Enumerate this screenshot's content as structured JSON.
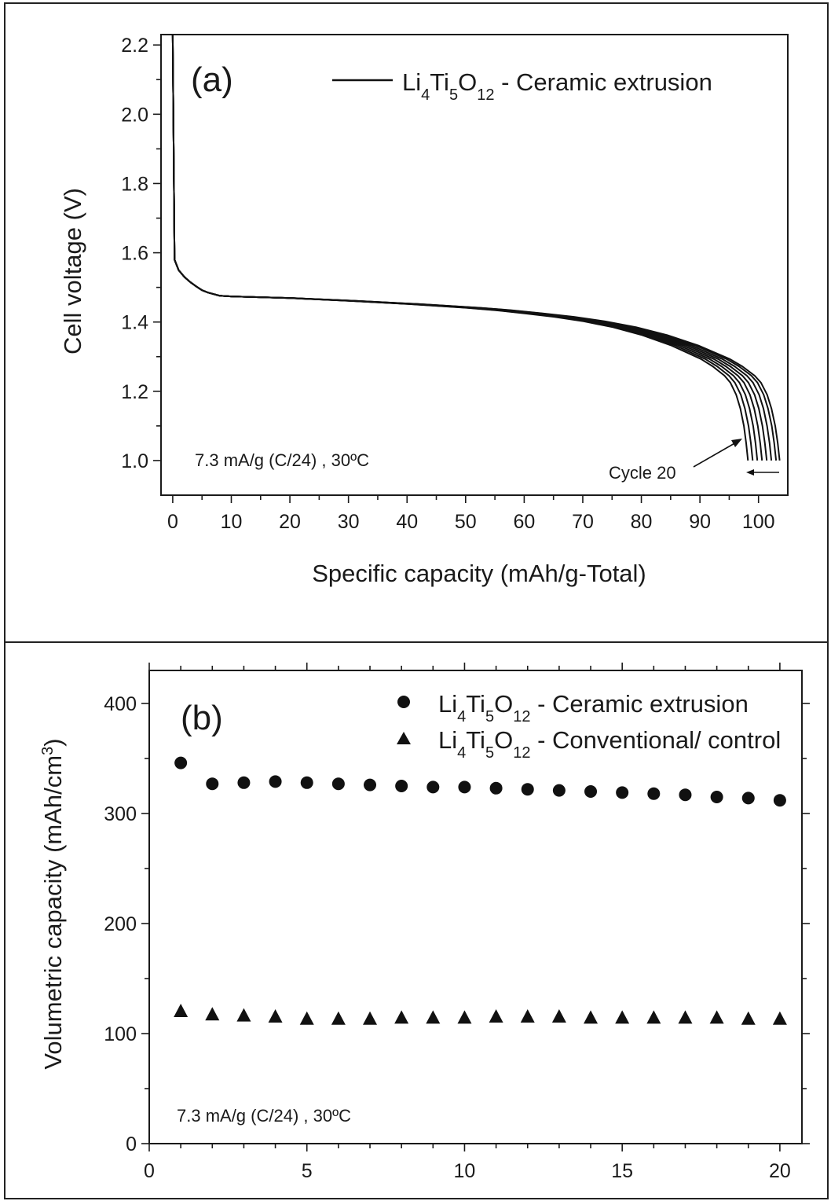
{
  "chart_data": [
    {
      "type": "line",
      "panel_label": "(a)",
      "title": "",
      "xlabel": "Specific capacity (mAh/g-Total)",
      "ylabel": "Cell voltage (V)",
      "xlim": [
        -2,
        105
      ],
      "ylim": [
        0.9,
        2.23
      ],
      "xticks": [
        0,
        10,
        20,
        30,
        40,
        50,
        60,
        70,
        80,
        90,
        100
      ],
      "yticks": [
        1.0,
        1.2,
        1.4,
        1.6,
        1.8,
        2.0,
        2.2
      ],
      "grid": false,
      "legend": {
        "placement": "top-right",
        "entries": [
          {
            "name": "Li4Ti5O12 - Ceramic extrusion",
            "marker": "line"
          }
        ]
      },
      "legend_parts": {
        "prefix": "Li",
        "s1": "4",
        "mid1": "Ti",
        "s2": "5",
        "mid2": "O",
        "s3": "12",
        "suffix": " - Ceramic extrusion"
      },
      "annotations": [
        {
          "text": "7.3 mA/g (C/24) , 30ºC"
        },
        {
          "text": "Cycle 20",
          "points_to": [
            98,
            1.08
          ]
        }
      ],
      "series_end_capacities": [
        98.2,
        99.0,
        99.8,
        100.6,
        101.4,
        102.2,
        103.0,
        103.6
      ],
      "curve_profile": {
        "x": [
          0,
          0.3,
          1,
          2,
          3,
          4,
          5,
          6,
          8,
          10,
          20,
          30,
          40,
          50,
          55,
          60,
          65,
          70,
          75,
          80,
          85,
          90,
          92,
          94,
          95,
          96,
          96.7,
          97.3,
          97.7,
          98.0
        ],
        "y": [
          2.23,
          1.58,
          1.55,
          1.53,
          1.515,
          1.503,
          1.492,
          1.485,
          1.476,
          1.474,
          1.469,
          1.461,
          1.452,
          1.441,
          1.434,
          1.425,
          1.415,
          1.402,
          1.385,
          1.362,
          1.332,
          1.293,
          1.272,
          1.245,
          1.225,
          1.19,
          1.15,
          1.1,
          1.05,
          1.0
        ]
      }
    },
    {
      "type": "scatter",
      "panel_label": "(b)",
      "title": "",
      "xlabel": "",
      "ylabel": "Volumetric capacity (mAh/cm",
      "ylabel_sup": "3",
      "ylabel_end": ")",
      "xlim": [
        0,
        20.7
      ],
      "ylim": [
        0,
        430
      ],
      "xticks": [
        0,
        5,
        10,
        15,
        20
      ],
      "yticks": [
        0,
        100,
        200,
        300,
        400
      ],
      "grid": false,
      "legend": {
        "placement": "top-right"
      },
      "x": [
        1,
        2,
        3,
        4,
        5,
        6,
        7,
        8,
        9,
        10,
        11,
        12,
        13,
        14,
        15,
        16,
        17,
        18,
        19,
        20
      ],
      "series": [
        {
          "name": "Li4Ti5O12 - Ceramic extrusion",
          "marker": "circle",
          "label_parts": {
            "prefix": "Li",
            "s1": "4",
            "mid1": "Ti",
            "s2": "5",
            "mid2": "O",
            "s3": "12",
            "suffix": " - Ceramic extrusion"
          },
          "values": [
            346,
            327,
            328,
            329,
            328,
            327,
            326,
            325,
            324,
            324,
            323,
            322,
            321,
            320,
            319,
            318,
            317,
            315,
            314,
            312
          ]
        },
        {
          "name": "Li4Ti5O12 - Conventional/ control",
          "marker": "triangle",
          "label_parts": {
            "prefix": "Li",
            "s1": "4",
            "mid1": "Ti",
            "s2": "5",
            "mid2": "O",
            "s3": "12",
            "suffix": " - Conventional/ control"
          },
          "values": [
            120,
            117,
            116,
            115,
            113,
            113,
            113,
            114,
            114,
            114,
            115,
            115,
            115,
            114,
            114,
            114,
            114,
            114,
            113,
            113
          ]
        }
      ],
      "annotations": [
        {
          "text": "7.3 mA/g (C/24) , 30ºC"
        }
      ]
    }
  ]
}
